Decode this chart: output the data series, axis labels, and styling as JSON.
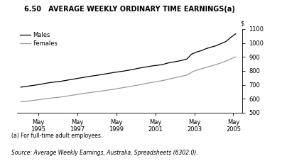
{
  "title": "6.50   AVERAGE WEEKLY ORDINARY TIME EARNINGS(a)",
  "dollar_label": "$",
  "ylim": [
    500,
    1100
  ],
  "yticks": [
    500,
    600,
    700,
    800,
    900,
    1000,
    1100
  ],
  "xtick_labels": [
    "May\n1995",
    "May\n1997",
    "May\n1999",
    "May\n2001",
    "May\n2003",
    "May\n2005"
  ],
  "xtick_positions": [
    1995.38,
    1997.38,
    1999.38,
    2001.38,
    2003.38,
    2005.38
  ],
  "footnote1": "(a) For full-time adult employees.",
  "footnote2": "Source: Average Weekly Earnings, Australia, Spreadsheets (6302.0).",
  "males_color": "#000000",
  "females_color": "#999999",
  "legend_labels": [
    "Males",
    "Females"
  ],
  "males_x": [
    1994.5,
    1994.75,
    1995.0,
    1995.25,
    1995.5,
    1995.75,
    1996.0,
    1996.25,
    1996.5,
    1996.75,
    1997.0,
    1997.25,
    1997.5,
    1997.75,
    1998.0,
    1998.25,
    1998.5,
    1998.75,
    1999.0,
    1999.25,
    1999.5,
    1999.75,
    2000.0,
    2000.25,
    2000.5,
    2000.75,
    2001.0,
    2001.25,
    2001.5,
    2001.75,
    2002.0,
    2002.25,
    2002.5,
    2002.75,
    2003.0,
    2003.25,
    2003.5,
    2003.75,
    2004.0,
    2004.25,
    2004.5,
    2004.75,
    2005.0,
    2005.25,
    2005.5
  ],
  "males_y": [
    683,
    688,
    693,
    698,
    703,
    710,
    716,
    720,
    724,
    730,
    736,
    742,
    748,
    754,
    760,
    765,
    770,
    776,
    782,
    788,
    793,
    798,
    804,
    810,
    818,
    824,
    830,
    836,
    840,
    845,
    855,
    862,
    868,
    875,
    885,
    920,
    935,
    945,
    960,
    970,
    980,
    995,
    1010,
    1040,
    1065
  ],
  "females_x": [
    1994.5,
    1994.75,
    1995.0,
    1995.25,
    1995.5,
    1995.75,
    1996.0,
    1996.25,
    1996.5,
    1996.75,
    1997.0,
    1997.25,
    1997.5,
    1997.75,
    1998.0,
    1998.25,
    1998.5,
    1998.75,
    1999.0,
    1999.25,
    1999.5,
    1999.75,
    2000.0,
    2000.25,
    2000.5,
    2000.75,
    2001.0,
    2001.25,
    2001.5,
    2001.75,
    2002.0,
    2002.25,
    2002.5,
    2002.75,
    2003.0,
    2003.25,
    2003.5,
    2003.75,
    2004.0,
    2004.25,
    2004.5,
    2004.75,
    2005.0,
    2005.25,
    2005.5
  ],
  "females_y": [
    578,
    582,
    585,
    590,
    595,
    600,
    604,
    608,
    612,
    617,
    622,
    628,
    633,
    638,
    643,
    648,
    653,
    658,
    663,
    668,
    674,
    680,
    686,
    692,
    698,
    705,
    712,
    718,
    724,
    730,
    738,
    746,
    754,
    762,
    770,
    790,
    805,
    815,
    825,
    835,
    845,
    857,
    870,
    885,
    900
  ],
  "xlim": [
    1994.3,
    2005.85
  ],
  "title_fontsize": 7.0,
  "axis_fontsize": 6.0,
  "legend_fontsize": 6.0,
  "footnote_fontsize": 5.5,
  "background_color": "#ffffff",
  "line_width": 0.9
}
